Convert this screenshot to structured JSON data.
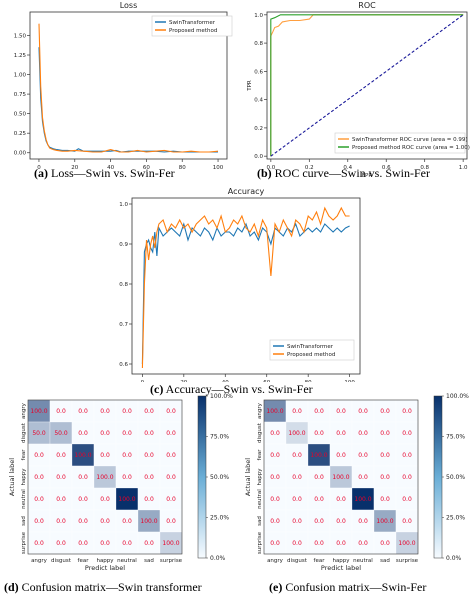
{
  "colors": {
    "swin": "#1f77b4",
    "proposed": "#ff7f0e",
    "roc_swin": "#ff9f3f",
    "roc_proposed": "#2ca02c",
    "diag": "#1a1a99",
    "cell_text": "#e8002a",
    "cmap_low": "#f7fbff",
    "cmap_high": "#08306b"
  },
  "captions": {
    "a_letter": "(a)",
    "a_text": "Loss—Swin vs. Swin-Fer",
    "b_letter": "(b)",
    "b_text": "ROC curve—Swin vs. Swin-Fer",
    "c_letter": "(c)",
    "c_text": "Accuracy—Swin vs. Swin-Fer",
    "d_letter": "(d)",
    "d_text": "Confusion matrix—Swin transformer",
    "e_letter": "(e)",
    "e_text": "Confusion matrix—Swin-Fer"
  },
  "chart_data": [
    {
      "id": "loss",
      "type": "line",
      "title": "Loss",
      "xlabel": "",
      "ylabel": "",
      "xlim": [
        -5,
        105
      ],
      "ylim": [
        -0.08,
        1.8
      ],
      "xticks": [
        0,
        20,
        40,
        60,
        80,
        100
      ],
      "yticks": [
        0.0,
        0.25,
        0.5,
        0.75,
        1.0,
        1.25,
        1.5
      ],
      "yticklabels": [
        "0.00",
        "0.25",
        "0.50",
        "0.75",
        "1.00",
        "1.25",
        "1.50"
      ],
      "grid": false,
      "legend": "top-right",
      "series": [
        {
          "name": "SwinTransformer",
          "color_key": "swin",
          "x": [
            0,
            1,
            2,
            3,
            4,
            5,
            6,
            8,
            10,
            13,
            16,
            20,
            22,
            25,
            30,
            35,
            40,
            43,
            46,
            50,
            55,
            60,
            65,
            70,
            75,
            80,
            85,
            90,
            95,
            100
          ],
          "y": [
            1.35,
            0.7,
            0.4,
            0.25,
            0.15,
            0.1,
            0.07,
            0.05,
            0.04,
            0.03,
            0.03,
            0.02,
            0.05,
            0.02,
            0.02,
            0.02,
            0.02,
            0.03,
            0.01,
            0.02,
            0.02,
            0.02,
            0.02,
            0.01,
            0.02,
            0.01,
            0.01,
            0.01,
            0.01,
            0.01
          ]
        },
        {
          "name": "Proposed method",
          "color_key": "proposed",
          "x": [
            0,
            1,
            2,
            3,
            4,
            5,
            6,
            8,
            10,
            13,
            16,
            20,
            25,
            30,
            35,
            40,
            45,
            50,
            55,
            60,
            65,
            70,
            75,
            80,
            85,
            90,
            95,
            100
          ],
          "y": [
            1.65,
            0.85,
            0.45,
            0.28,
            0.17,
            0.1,
            0.06,
            0.04,
            0.03,
            0.02,
            0.02,
            0.03,
            0.02,
            0.01,
            0.01,
            0.04,
            0.01,
            0.01,
            0.03,
            0.01,
            0.02,
            0.03,
            0.01,
            0.01,
            0.02,
            0.01,
            0.01,
            0.02
          ]
        }
      ]
    },
    {
      "id": "roc",
      "type": "line",
      "title": "ROC",
      "xlabel": "FPR",
      "ylabel": "TPR",
      "xlim": [
        -0.02,
        1.02
      ],
      "ylim": [
        -0.02,
        1.02
      ],
      "xticks": [
        0.0,
        0.2,
        0.4,
        0.6,
        0.8,
        1.0
      ],
      "xticklabels": [
        "0.0",
        "0.2",
        "0.4",
        "0.6",
        "0.8",
        "1.0"
      ],
      "yticks": [
        0.0,
        0.2,
        0.4,
        0.6,
        0.8,
        1.0
      ],
      "yticklabels": [
        "0.0",
        "0.2",
        "0.4",
        "0.6",
        "0.8",
        "1.0"
      ],
      "grid": false,
      "legend": "bottom-right",
      "series": [
        {
          "name": "SwinTransformer ROC curve (area = 0.99)",
          "color_key": "roc_swin",
          "x": [
            0,
            0,
            0.01,
            0.02,
            0.04,
            0.06,
            0.1,
            0.15,
            0.2,
            0.22,
            1.0
          ],
          "y": [
            0,
            0.85,
            0.88,
            0.91,
            0.92,
            0.95,
            0.96,
            0.96,
            0.97,
            1.0,
            1.0
          ]
        },
        {
          "name": "Proposed method  ROC curve (area = 1.00)",
          "color_key": "roc_proposed",
          "x": [
            0,
            0,
            0.02,
            0.05,
            1.0
          ],
          "y": [
            0,
            0.97,
            0.98,
            1.0,
            1.0
          ]
        },
        {
          "name": "",
          "color_key": "diag",
          "dashed": true,
          "x": [
            0,
            1
          ],
          "y": [
            0,
            1
          ]
        }
      ]
    },
    {
      "id": "accuracy",
      "type": "line",
      "title": "Accuracy",
      "xlabel": "",
      "ylabel": "",
      "xlim": [
        -5,
        105
      ],
      "ylim": [
        0.575,
        1.015
      ],
      "xticks": [
        0,
        20,
        40,
        60,
        80,
        100
      ],
      "yticks": [
        0.6,
        0.7,
        0.8,
        0.9,
        1.0
      ],
      "yticklabels": [
        "0.6",
        "0.7",
        "0.8",
        "0.9",
        "1.0"
      ],
      "grid": false,
      "legend": "bottom-right",
      "series": [
        {
          "name": "SwinTransformer",
          "color_key": "swin",
          "x": [
            0,
            1,
            2,
            3,
            4,
            5,
            6,
            7,
            8,
            10,
            12,
            14,
            16,
            18,
            20,
            22,
            24,
            26,
            28,
            30,
            32,
            34,
            36,
            38,
            40,
            42,
            44,
            46,
            48,
            50,
            52,
            54,
            56,
            58,
            60,
            62,
            64,
            66,
            68,
            70,
            72,
            74,
            76,
            78,
            80,
            82,
            84,
            86,
            88,
            90,
            92,
            94,
            96,
            98,
            100
          ],
          "y": [
            0.6,
            0.88,
            0.9,
            0.91,
            0.89,
            0.88,
            0.93,
            0.87,
            0.94,
            0.92,
            0.93,
            0.94,
            0.93,
            0.92,
            0.95,
            0.91,
            0.94,
            0.93,
            0.92,
            0.94,
            0.93,
            0.91,
            0.94,
            0.92,
            0.93,
            0.93,
            0.92,
            0.94,
            0.93,
            0.95,
            0.92,
            0.93,
            0.91,
            0.94,
            0.93,
            0.9,
            0.94,
            0.93,
            0.92,
            0.94,
            0.93,
            0.95,
            0.92,
            0.93,
            0.94,
            0.93,
            0.94,
            0.93,
            0.95,
            0.94,
            0.93,
            0.94,
            0.93,
            0.94,
            0.945
          ]
        },
        {
          "name": "Proposed method",
          "color_key": "proposed",
          "x": [
            0,
            1,
            2,
            3,
            4,
            5,
            6,
            7,
            8,
            10,
            12,
            14,
            16,
            18,
            20,
            22,
            24,
            26,
            28,
            30,
            32,
            34,
            36,
            38,
            40,
            42,
            44,
            46,
            48,
            50,
            52,
            54,
            56,
            58,
            60,
            62,
            64,
            66,
            68,
            70,
            72,
            74,
            76,
            78,
            80,
            82,
            84,
            86,
            88,
            90,
            92,
            94,
            96,
            98,
            100
          ],
          "y": [
            0.59,
            0.8,
            0.91,
            0.86,
            0.9,
            0.92,
            0.89,
            0.93,
            0.95,
            0.96,
            0.93,
            0.95,
            0.94,
            0.96,
            0.94,
            0.95,
            0.93,
            0.95,
            0.96,
            0.97,
            0.95,
            0.96,
            0.94,
            0.97,
            0.93,
            0.94,
            0.96,
            0.95,
            0.97,
            0.94,
            0.93,
            0.95,
            0.92,
            0.96,
            0.94,
            0.82,
            0.95,
            0.93,
            0.96,
            0.94,
            0.92,
            0.96,
            0.95,
            0.93,
            0.97,
            0.96,
            0.98,
            0.95,
            0.99,
            0.97,
            0.96,
            0.97,
            0.99,
            0.97,
            0.97
          ]
        }
      ]
    },
    {
      "id": "cm_swin",
      "type": "heatmap",
      "xlabel": "Predict label",
      "ylabel": "Actual label",
      "labels": [
        "angry",
        "disgust",
        "fear",
        "happy",
        "neutral",
        "sad",
        "surprise"
      ],
      "values": [
        [
          100.0,
          0.0,
          0.0,
          0.0,
          0.0,
          0.0,
          0.0
        ],
        [
          50.0,
          50.0,
          0.0,
          0.0,
          0.0,
          0.0,
          0.0
        ],
        [
          0.0,
          0.0,
          100.0,
          0.0,
          0.0,
          0.0,
          0.0
        ],
        [
          0.0,
          0.0,
          0.0,
          100.0,
          0.0,
          0.0,
          0.0
        ],
        [
          0.0,
          0.0,
          0.0,
          0.0,
          100.0,
          0.0,
          0.0
        ],
        [
          0.0,
          0.0,
          0.0,
          0.0,
          0.0,
          100.0,
          0.0
        ],
        [
          0.0,
          0.0,
          0.0,
          0.0,
          0.0,
          0.0,
          100.0
        ]
      ],
      "colorbar_ticks": [
        "0.0%",
        "25.0%",
        "50.0%",
        "75.0%",
        "100.0%"
      ],
      "color_scale": [
        0,
        100
      ],
      "diag_intensity": [
        0.55,
        0.3,
        0.85,
        0.25,
        1.0,
        0.4,
        0.2
      ]
    },
    {
      "id": "cm_fer",
      "type": "heatmap",
      "xlabel": "Predict label",
      "ylabel": "Actual label",
      "labels": [
        "angry",
        "disgust",
        "fear",
        "happy",
        "neutral",
        "sad",
        "surprise"
      ],
      "values": [
        [
          100.0,
          0.0,
          0.0,
          0.0,
          0.0,
          0.0,
          0.0
        ],
        [
          0.0,
          100.0,
          0.0,
          0.0,
          0.0,
          0.0,
          0.0
        ],
        [
          0.0,
          0.0,
          100.0,
          0.0,
          0.0,
          0.0,
          0.0
        ],
        [
          0.0,
          0.0,
          0.0,
          100.0,
          0.0,
          0.0,
          0.0
        ],
        [
          0.0,
          0.0,
          0.0,
          0.0,
          100.0,
          0.0,
          0.0
        ],
        [
          0.0,
          0.0,
          0.0,
          0.0,
          0.0,
          100.0,
          0.0
        ],
        [
          0.0,
          0.0,
          0.0,
          0.0,
          0.0,
          0.0,
          100.0
        ]
      ],
      "colorbar_ticks": [
        "0.0%",
        "25.0%",
        "50.0%",
        "75.0%",
        "100.0%"
      ],
      "color_scale": [
        0,
        100
      ],
      "diag_intensity": [
        0.55,
        0.15,
        0.85,
        0.25,
        1.0,
        0.4,
        0.2
      ]
    }
  ]
}
